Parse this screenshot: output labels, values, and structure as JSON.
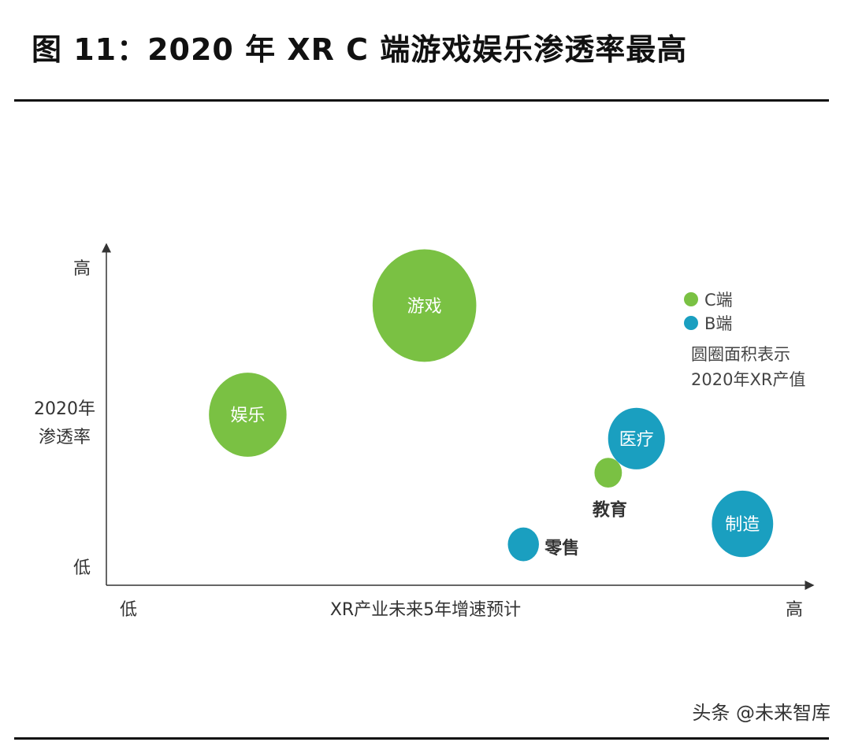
{
  "title": "图 11：2020 年 XR C 端游戏娱乐渗透率最高",
  "watermark": "头条 @未来智库",
  "chart_data": {
    "type": "scatter",
    "xlabel": "XR产业未来5年增速预计",
    "ylabel": "2020年\n渗透率",
    "x_low": "低",
    "x_high": "高",
    "y_low": "低",
    "y_high": "高",
    "xlim": [
      0,
      100
    ],
    "ylim": [
      0,
      100
    ],
    "legend": {
      "position": "top-right",
      "entries": [
        {
          "label": "C端",
          "color": "#7ac143"
        },
        {
          "label": "B端",
          "color": "#1a9fc0"
        }
      ],
      "note": [
        "圆圈面积表示",
        "2020年XR产值"
      ]
    },
    "points": [
      {
        "label": "游戏",
        "group": "C端",
        "x": 45,
        "y": 82,
        "area": 100,
        "label_inside": true
      },
      {
        "label": "娱乐",
        "group": "C端",
        "x": 20,
        "y": 50,
        "area": 56,
        "label_inside": true
      },
      {
        "label": "医疗",
        "group": "B端",
        "x": 75,
        "y": 43,
        "area": 30,
        "label_inside": true
      },
      {
        "label": "教育",
        "group": "C端",
        "x": 71,
        "y": 33,
        "area": 7,
        "label_inside": false
      },
      {
        "label": "制造",
        "group": "B端",
        "x": 90,
        "y": 18,
        "area": 35,
        "label_inside": true
      },
      {
        "label": "零售",
        "group": "B端",
        "x": 59,
        "y": 12,
        "area": 9,
        "label_inside": false
      }
    ]
  }
}
